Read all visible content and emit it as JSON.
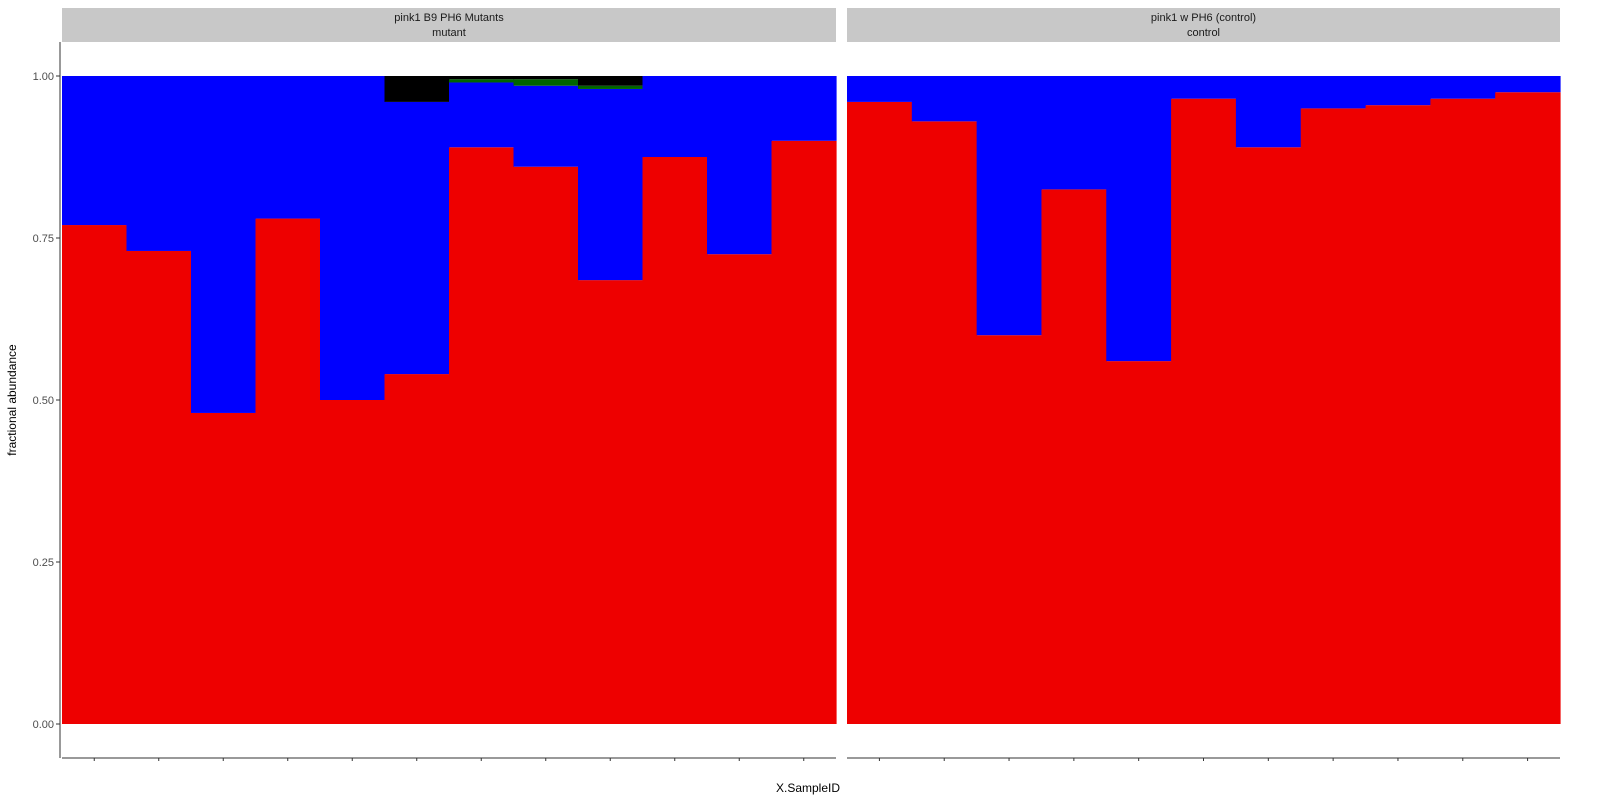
{
  "chart_data": {
    "type": "bar",
    "stacked": true,
    "xlabel": "X.SampleID",
    "ylabel": "fractional abundance",
    "ylim": [
      0,
      1
    ],
    "yticks": [
      "0.00",
      "0.25",
      "0.50",
      "0.75",
      "1.00"
    ],
    "grid": false,
    "panels": [
      {
        "strip_line1": "pink1 B9 PH6 Mutants",
        "strip_line2": "mutant",
        "series": [
          {
            "color": "#ee0000",
            "values": [
              0.77,
              0.73,
              0.48,
              0.78,
              0.5,
              0.54,
              0.89,
              0.86,
              0.685,
              0.875,
              0.725,
              0.9
            ]
          },
          {
            "color": "#0000ff",
            "values": [
              0.23,
              0.27,
              0.52,
              0.22,
              0.5,
              0.42,
              0.1,
              0.125,
              0.295,
              0.125,
              0.275,
              0.1
            ]
          },
          {
            "color": "#006400",
            "values": [
              0,
              0,
              0,
              0,
              0,
              0,
              0.005,
              0.01,
              0.005,
              0,
              0,
              0
            ]
          },
          {
            "color": "#000000",
            "values": [
              0,
              0,
              0,
              0,
              0,
              0.04,
              0.005,
              0.005,
              0.015,
              0,
              0,
              0
            ]
          }
        ]
      },
      {
        "strip_line1": "pink1 w PH6 (control)",
        "strip_line2": "control",
        "series": [
          {
            "color": "#ee0000",
            "values": [
              0.96,
              0.93,
              0.6,
              0.825,
              0.56,
              0.965,
              0.89,
              0.95,
              0.955,
              0.965,
              0.975
            ]
          },
          {
            "color": "#0000ff",
            "values": [
              0.04,
              0.07,
              0.4,
              0.175,
              0.44,
              0.035,
              0.11,
              0.05,
              0.045,
              0.035,
              0.025
            ]
          }
        ]
      }
    ]
  }
}
